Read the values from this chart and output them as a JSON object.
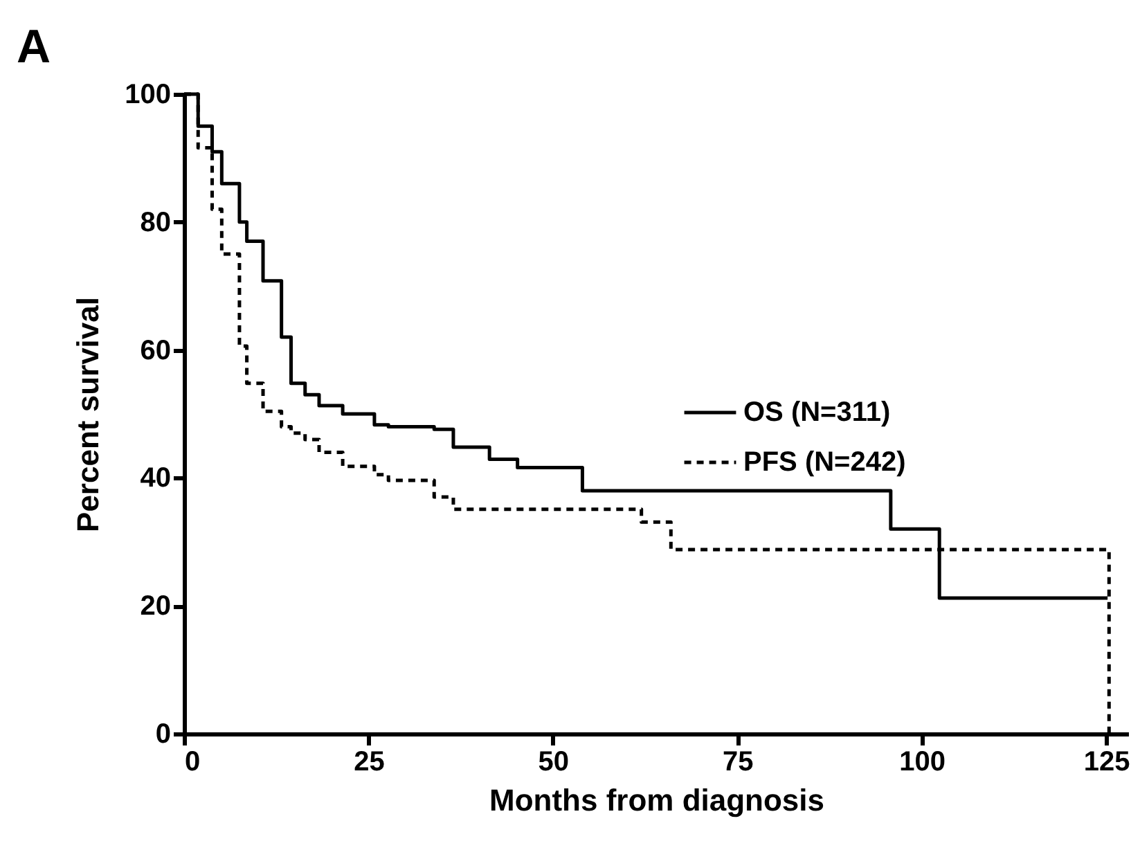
{
  "chart_data": {
    "type": "step",
    "title": "A",
    "xlabel": "Months from diagnosis",
    "ylabel": "Percent survival",
    "x": [
      0,
      1.9,
      3.8,
      5.1,
      7.5,
      8.5,
      10.7,
      13.2,
      14.5,
      16.4,
      18.3,
      21.5,
      25.8,
      27.7,
      33.9,
      36.5,
      41.4,
      45.2,
      54,
      61,
      62,
      66,
      95.8,
      102.4,
      125.2,
      125.4
    ],
    "series": [
      {
        "name": "OS (N=311)",
        "color": "#000000",
        "line_style": "solid",
        "values": [
          100,
          95,
          91,
          86,
          80,
          77,
          70.8,
          62,
          54.8,
          53,
          51.3,
          50,
          48.3,
          48,
          47.6,
          44.8,
          42.9,
          41.6,
          38,
          38,
          38,
          38,
          32,
          21.2,
          21.2,
          null
        ]
      },
      {
        "name": "PFS (N=242)",
        "color": "#000000",
        "line_style": "dashed",
        "values": [
          100,
          91.6,
          82,
          75,
          60.6,
          54.8,
          50.4,
          48,
          47,
          46,
          44,
          41.8,
          40.5,
          39.6,
          37,
          35.1,
          35.1,
          35.1,
          35.1,
          35.1,
          33.1,
          28.8,
          28.8,
          28.8,
          28.8,
          0
        ]
      }
    ],
    "xlim": [
      0,
      128
    ],
    "ylim": [
      0,
      100
    ],
    "xticks": [
      0,
      25,
      50,
      75,
      100,
      125
    ],
    "yticks": [
      0,
      20,
      40,
      60,
      80,
      100
    ],
    "grid": false,
    "legend": "right"
  }
}
